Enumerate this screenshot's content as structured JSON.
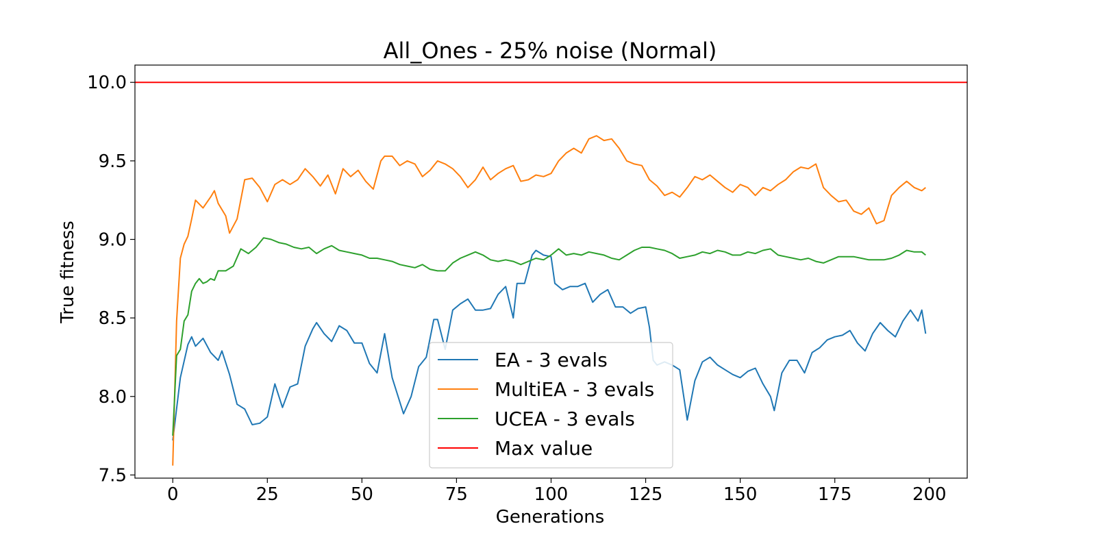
{
  "chart_data": {
    "type": "line",
    "title": "All_Ones - 25% noise (Normal)",
    "xlabel": "Generations",
    "ylabel": "True fitness",
    "xlim": [
      -10,
      210
    ],
    "ylim": [
      7.48,
      10.11
    ],
    "xticks": [
      0,
      25,
      50,
      75,
      100,
      125,
      150,
      175,
      200
    ],
    "xtick_labels": [
      "0",
      "25",
      "50",
      "75",
      "100",
      "125",
      "150",
      "175",
      "200"
    ],
    "yticks": [
      7.5,
      8.0,
      8.5,
      9.0,
      9.5,
      10.0
    ],
    "ytick_labels": [
      "7.5",
      "8.0",
      "8.5",
      "9.0",
      "9.5",
      "10.0"
    ],
    "grid": false,
    "legend_position": "lower-center",
    "series": [
      {
        "name": "EA - 3 evals",
        "color": "#1f77b4",
        "x": [
          0,
          2,
          4,
          5,
          6,
          8,
          10,
          12,
          13,
          15,
          17,
          19,
          21,
          23,
          25,
          27,
          29,
          31,
          33,
          35,
          37,
          38,
          40,
          42,
          44,
          46,
          48,
          50,
          52,
          54,
          56,
          58,
          61,
          63,
          65,
          67,
          69,
          70,
          72,
          74,
          76,
          78,
          80,
          82,
          84,
          86,
          88,
          90,
          91,
          93,
          95,
          96,
          98,
          100,
          101,
          103,
          105,
          107,
          109,
          111,
          113,
          115,
          117,
          119,
          121,
          123,
          125,
          126,
          127,
          128,
          130,
          132,
          134,
          136,
          138,
          140,
          142,
          144,
          146,
          148,
          150,
          152,
          154,
          156,
          158,
          159,
          161,
          163,
          165,
          167,
          169,
          171,
          173,
          175,
          177,
          179,
          181,
          183,
          185,
          187,
          189,
          191,
          193,
          195,
          197,
          198,
          199
        ],
        "values": [
          7.72,
          8.12,
          8.33,
          8.38,
          8.32,
          8.37,
          8.28,
          8.23,
          8.29,
          8.14,
          7.95,
          7.92,
          7.82,
          7.83,
          7.87,
          8.08,
          7.93,
          8.06,
          8.08,
          8.32,
          8.43,
          8.47,
          8.4,
          8.35,
          8.45,
          8.42,
          8.34,
          8.34,
          8.21,
          8.15,
          8.4,
          8.12,
          7.89,
          8.0,
          8.19,
          8.25,
          8.49,
          8.49,
          8.3,
          8.55,
          8.59,
          8.62,
          8.55,
          8.55,
          8.56,
          8.65,
          8.7,
          8.5,
          8.72,
          8.72,
          8.9,
          8.93,
          8.9,
          8.89,
          8.72,
          8.68,
          8.7,
          8.7,
          8.72,
          8.6,
          8.65,
          8.68,
          8.57,
          8.57,
          8.53,
          8.56,
          8.57,
          8.44,
          8.23,
          8.2,
          8.22,
          8.2,
          8.17,
          7.85,
          8.1,
          8.22,
          8.25,
          8.2,
          8.17,
          8.14,
          8.12,
          8.16,
          8.18,
          8.08,
          8.0,
          7.91,
          8.15,
          8.23,
          8.23,
          8.15,
          8.28,
          8.31,
          8.36,
          8.38,
          8.39,
          8.42,
          8.34,
          8.29,
          8.4,
          8.47,
          8.42,
          8.38,
          8.48,
          8.55,
          8.48,
          8.55,
          8.4
        ]
      },
      {
        "name": "MultiEA - 3 evals",
        "color": "#ff7f0e",
        "x": [
          0,
          1,
          2,
          3,
          4,
          5,
          6,
          8,
          10,
          11,
          12,
          14,
          15,
          17,
          19,
          21,
          23,
          25,
          27,
          29,
          31,
          33,
          35,
          37,
          39,
          41,
          43,
          45,
          47,
          49,
          51,
          53,
          55,
          56,
          58,
          60,
          62,
          64,
          66,
          68,
          70,
          72,
          74,
          76,
          78,
          80,
          82,
          84,
          86,
          88,
          90,
          92,
          94,
          96,
          98,
          100,
          102,
          104,
          106,
          108,
          110,
          112,
          114,
          116,
          118,
          120,
          122,
          124,
          126,
          128,
          130,
          132,
          134,
          136,
          138,
          140,
          142,
          144,
          146,
          148,
          150,
          152,
          154,
          156,
          158,
          160,
          162,
          164,
          166,
          168,
          170,
          172,
          174,
          176,
          178,
          180,
          182,
          184,
          186,
          188,
          190,
          192,
          194,
          196,
          198,
          199
        ],
        "values": [
          7.56,
          8.48,
          8.88,
          8.97,
          9.02,
          9.13,
          9.25,
          9.2,
          9.27,
          9.31,
          9.23,
          9.15,
          9.04,
          9.13,
          9.38,
          9.39,
          9.33,
          9.24,
          9.35,
          9.38,
          9.35,
          9.38,
          9.45,
          9.4,
          9.34,
          9.41,
          9.29,
          9.45,
          9.4,
          9.44,
          9.37,
          9.32,
          9.5,
          9.53,
          9.53,
          9.47,
          9.5,
          9.48,
          9.4,
          9.44,
          9.5,
          9.48,
          9.45,
          9.4,
          9.33,
          9.38,
          9.46,
          9.38,
          9.42,
          9.45,
          9.47,
          9.37,
          9.38,
          9.41,
          9.4,
          9.42,
          9.5,
          9.55,
          9.58,
          9.55,
          9.64,
          9.66,
          9.63,
          9.64,
          9.58,
          9.5,
          9.48,
          9.47,
          9.38,
          9.34,
          9.28,
          9.3,
          9.27,
          9.33,
          9.4,
          9.38,
          9.41,
          9.37,
          9.33,
          9.3,
          9.35,
          9.33,
          9.28,
          9.33,
          9.31,
          9.35,
          9.38,
          9.43,
          9.46,
          9.45,
          9.48,
          9.33,
          9.28,
          9.24,
          9.25,
          9.18,
          9.16,
          9.2,
          9.1,
          9.12,
          9.28,
          9.33,
          9.37,
          9.33,
          9.31,
          9.33
        ],
        "_comment": ""
      },
      {
        "name": "UCEA - 3 evals",
        "color": "#2ca02c",
        "x": [
          0,
          1,
          2,
          3,
          4,
          5,
          6,
          7,
          8,
          9,
          10,
          11,
          12,
          14,
          16,
          18,
          20,
          22,
          24,
          26,
          28,
          30,
          32,
          34,
          36,
          38,
          40,
          42,
          44,
          46,
          48,
          50,
          52,
          54,
          56,
          58,
          60,
          62,
          64,
          66,
          68,
          70,
          72,
          74,
          76,
          78,
          80,
          82,
          84,
          86,
          88,
          90,
          92,
          94,
          96,
          98,
          100,
          102,
          104,
          106,
          108,
          110,
          112,
          114,
          116,
          118,
          120,
          122,
          124,
          126,
          128,
          130,
          132,
          134,
          136,
          138,
          140,
          142,
          144,
          146,
          148,
          150,
          152,
          154,
          156,
          158,
          160,
          162,
          164,
          166,
          168,
          170,
          172,
          174,
          176,
          178,
          180,
          182,
          184,
          186,
          188,
          190,
          192,
          194,
          196,
          198,
          199
        ],
        "values": [
          7.75,
          8.26,
          8.3,
          8.48,
          8.52,
          8.67,
          8.72,
          8.75,
          8.72,
          8.73,
          8.75,
          8.74,
          8.8,
          8.8,
          8.83,
          8.94,
          8.91,
          8.95,
          9.01,
          9.0,
          8.98,
          8.97,
          8.95,
          8.94,
          8.95,
          8.91,
          8.94,
          8.96,
          8.93,
          8.92,
          8.91,
          8.9,
          8.88,
          8.88,
          8.87,
          8.86,
          8.84,
          8.83,
          8.82,
          8.84,
          8.81,
          8.8,
          8.8,
          8.85,
          8.88,
          8.9,
          8.92,
          8.9,
          8.87,
          8.86,
          8.87,
          8.86,
          8.84,
          8.86,
          8.88,
          8.87,
          8.9,
          8.94,
          8.9,
          8.91,
          8.9,
          8.92,
          8.91,
          8.9,
          8.88,
          8.87,
          8.9,
          8.93,
          8.95,
          8.95,
          8.94,
          8.93,
          8.91,
          8.88,
          8.89,
          8.9,
          8.92,
          8.91,
          8.93,
          8.92,
          8.9,
          8.9,
          8.92,
          8.91,
          8.93,
          8.94,
          8.9,
          8.89,
          8.88,
          8.87,
          8.88,
          8.86,
          8.85,
          8.87,
          8.89,
          8.89,
          8.89,
          8.88,
          8.87,
          8.87,
          8.87,
          8.88,
          8.9,
          8.93,
          8.92,
          8.92,
          8.9
        ]
      },
      {
        "name": "Max value",
        "color": "#ff0000",
        "x": [
          -10,
          210
        ],
        "values": [
          10.0,
          10.0
        ]
      }
    ]
  }
}
